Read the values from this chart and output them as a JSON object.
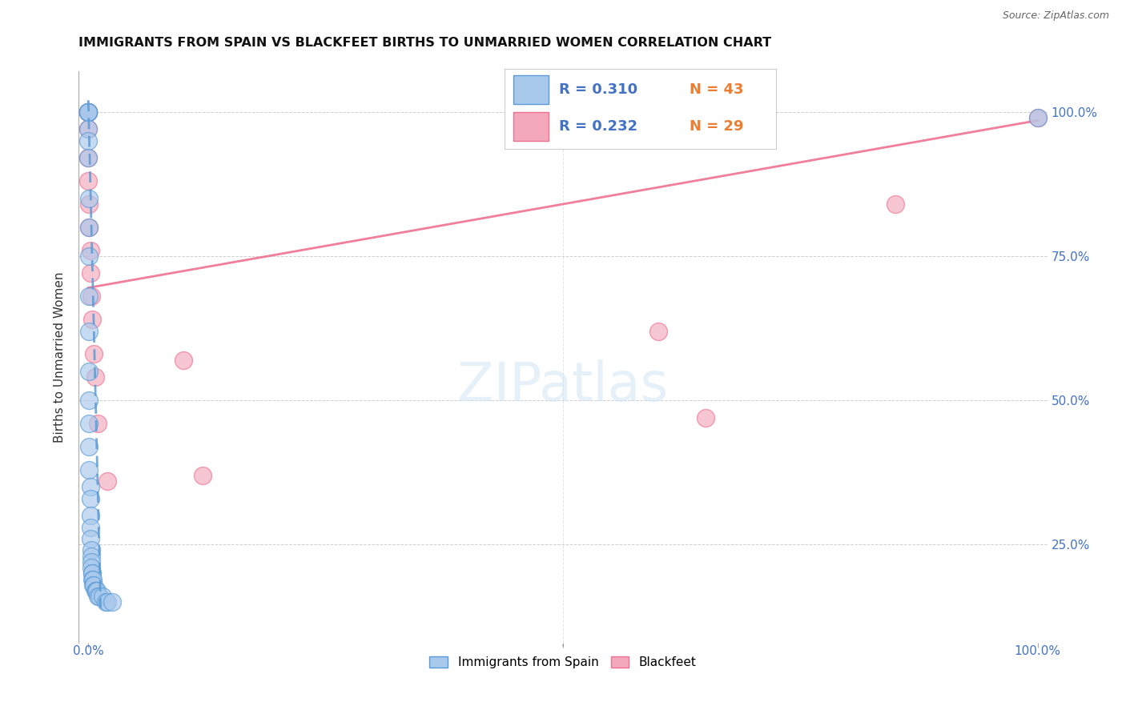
{
  "title": "IMMIGRANTS FROM SPAIN VS BLACKFEET BIRTHS TO UNMARRIED WOMEN CORRELATION CHART",
  "source": "Source: ZipAtlas.com",
  "ylabel": "Births to Unmarried Women",
  "color_blue": "#A8C8EC",
  "color_pink": "#F4A8BC",
  "line_blue": "#5B9BD5",
  "line_pink": "#F07090",
  "legend_r_color": "#4472C4",
  "legend_n_color": "#ED7D31",
  "blue_scatter_x": [
    0.0,
    0.0,
    0.0,
    0.0,
    0.0,
    0.0,
    0.0,
    0.0,
    0.001,
    0.001,
    0.001,
    0.001,
    0.001,
    0.001,
    0.001,
    0.001,
    0.001,
    0.001,
    0.002,
    0.002,
    0.002,
    0.002,
    0.002,
    0.003,
    0.003,
    0.003,
    0.003,
    0.004,
    0.004,
    0.004,
    0.005,
    0.005,
    0.006,
    0.007,
    0.008,
    0.009,
    0.01,
    0.012,
    0.015,
    0.018,
    0.02,
    0.025,
    1.0
  ],
  "blue_scatter_y": [
    1.0,
    1.0,
    1.0,
    1.0,
    1.0,
    0.97,
    0.95,
    0.92,
    0.85,
    0.8,
    0.75,
    0.68,
    0.62,
    0.55,
    0.5,
    0.46,
    0.42,
    0.38,
    0.35,
    0.33,
    0.3,
    0.28,
    0.26,
    0.24,
    0.23,
    0.22,
    0.21,
    0.2,
    0.2,
    0.19,
    0.19,
    0.18,
    0.18,
    0.17,
    0.17,
    0.17,
    0.16,
    0.16,
    0.16,
    0.15,
    0.15,
    0.15,
    0.99
  ],
  "pink_scatter_x": [
    0.0,
    0.0,
    0.0,
    0.0,
    0.0,
    0.0,
    0.0,
    0.001,
    0.001,
    0.002,
    0.002,
    0.003,
    0.004,
    0.006,
    0.007,
    0.01,
    0.02,
    0.1,
    0.12,
    0.6,
    0.65,
    0.85,
    1.0
  ],
  "pink_scatter_y": [
    1.0,
    1.0,
    1.0,
    1.0,
    0.97,
    0.92,
    0.88,
    0.84,
    0.8,
    0.76,
    0.72,
    0.68,
    0.64,
    0.58,
    0.54,
    0.46,
    0.36,
    0.57,
    0.37,
    0.62,
    0.47,
    0.84,
    0.99
  ],
  "blue_line_x_start": 0.0,
  "blue_line_x_end": 0.013,
  "blue_line_y_start": 1.02,
  "blue_line_y_end": 0.14,
  "pink_line_x_start": 0.0,
  "pink_line_x_end": 1.0,
  "pink_line_y_start": 0.695,
  "pink_line_y_end": 0.985,
  "xlim_min": -0.01,
  "xlim_max": 1.01,
  "ylim_min": 0.08,
  "ylim_max": 1.07,
  "ytick_vals": [
    0.25,
    0.5,
    0.75,
    1.0
  ],
  "ytick_labels": [
    "25.0%",
    "50.0%",
    "75.0%",
    "100.0%"
  ],
  "xtick_vals": [
    0.0,
    0.5,
    1.0
  ],
  "xtick_labels": [
    "0.0%",
    "",
    "100.0%"
  ]
}
